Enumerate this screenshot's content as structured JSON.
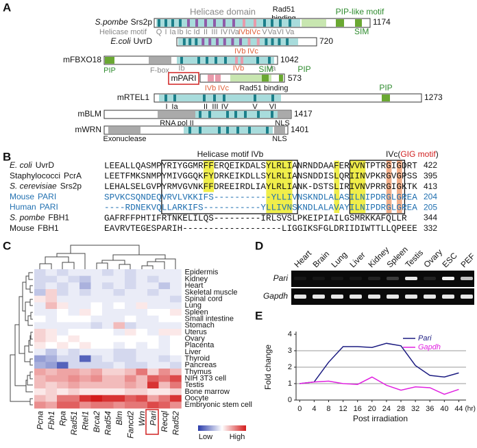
{
  "panel_a": {
    "label": "A",
    "helicase_domain": "Helicase domain",
    "rad51_binding": [
      "Rad51",
      "binding"
    ],
    "pip_like_motif": "PIP-like motif",
    "helicase_motif": "Helicase motif",
    "motifs": [
      "Q",
      "I",
      "Ia",
      "Ib",
      "Ic",
      "Id",
      "II",
      "III",
      "IV",
      "IVa",
      "IVb",
      "IVc",
      "V",
      "Va",
      "VI",
      "Va"
    ],
    "sim": "SIM",
    "proteins": [
      {
        "species": "S.pombe",
        "name": "Srs2p",
        "length": 1174,
        "annotations": []
      },
      {
        "species": "E.coli",
        "name": "UvrD",
        "length": 720,
        "annotations": [
          "IVb",
          "IVc"
        ]
      },
      {
        "name": "mFBXO18",
        "length": 1042,
        "annotations": [
          "PIP",
          "F-box",
          "Ib",
          "IVb",
          "Va"
        ]
      },
      {
        "name": "mPARI",
        "length": 573,
        "annotations": [
          "SIM",
          "PIP",
          "IVb",
          "IVc",
          "Rad51 binding"
        ]
      },
      {
        "name": "mRTEL1",
        "length": 1273,
        "annotations": [
          "PIP",
          "I",
          "Ia",
          "II",
          "III",
          "IV",
          "V",
          "VI"
        ]
      },
      {
        "name": "mBLM",
        "length": 1417,
        "annotations": [
          "RNA pol II",
          "NLS"
        ]
      },
      {
        "name": "mWRN",
        "length": 1401,
        "annotations": [
          "Exonuclease",
          "NLS"
        ]
      }
    ]
  },
  "panel_b": {
    "label": "B",
    "motif_ivb": "Helicase motif IVb",
    "ivc_prefix": "IVc(",
    "gig_motif": "GIG motif",
    "ivc_suffix": ")",
    "rows": [
      {
        "organism": "E. coli",
        "protein": "UvrD",
        "organism_italic": true,
        "sequence": "LEEALLQASMPYRIYGGMRFFERQEIKDALSYLRLIANRNDDAAFERVVNTPTRGIGDRT",
        "position": 422
      },
      {
        "organism": "Staphylococci",
        "protein": "PcrA",
        "organism_italic": false,
        "sequence": "LEETFMKSNMPYMIVGGQKFYDRKEIKDLLSYLRLIANSNDDISLQRIINVPKRGVGPSS",
        "position": 395
      },
      {
        "organism": "S. cerevisiae",
        "protein": "Srs2p",
        "organism_italic": true,
        "sequence": "LEHALSELGVPYRMVGVNKFFDREEIRDLIAYLRLIANK-DSTSLIRIVNVPRRGIGKTK",
        "position": 413
      },
      {
        "organism": "Mouse",
        "protein": "PARI",
        "organism_italic": false,
        "color": "#1f6fb0",
        "sequence": "SPVKCSQNDEQVRVLVKKIFS-----------YLLIVNSKNDLALASILNIPDRGLGREA",
        "position": 204
      },
      {
        "organism": "Human",
        "protein": "PARI",
        "organism_italic": false,
        "color": "#1f6fb0",
        "sequence": "----RDNEKVQLLARKIFS-----------YLLIVNSKNDLALAVAYILNIPDRGLGREA",
        "position": 205
      },
      {
        "organism": "S. pombe",
        "protein": "FBH1",
        "organism_italic": true,
        "sequence": "GAFRFFPHTIFRTNKELILQS---------IRLSVSLPKEIPIAILGSMRKKAFQLLR",
        "position": 344
      },
      {
        "organism": "Mouse",
        "protein": "FBH1",
        "organism_italic": false,
        "sequence": "EAVRVTEGESPARIH-------------------LIGGIKSFGLDRIIDIWTTLLQPEEE",
        "position": 332
      }
    ]
  },
  "panel_c": {
    "label": "C",
    "columns": [
      "Pcna",
      "Fbh1",
      "Rpa",
      "Rad51",
      "Rtel1",
      "Brca2",
      "Rad54",
      "Blm",
      "Fancd2",
      "Wrn",
      "Pari",
      "Recql",
      "Rad52"
    ],
    "rows": [
      "Epidermis",
      "Kidney",
      "Heart",
      "Skeletal muscle",
      "Spinal cord",
      "Lung",
      "Spleen",
      "Small intestine",
      "Stomach",
      "Uterus",
      "Ovary",
      "Placenta",
      "Liver",
      "Thyroid",
      "Pancreas",
      "Thymus",
      "NIH 3T3 cell",
      "Testis",
      "Bone marrow",
      "Oocyte",
      "Embryonic stem cell"
    ],
    "values": [
      [
        -0.2,
        -0.1,
        -0.2,
        -0.1,
        -0.1,
        -0.1,
        -0.2,
        -0.1,
        -0.2,
        -0.1,
        -0.1,
        -0.1,
        -0.1
      ],
      [
        -0.2,
        -0.2,
        -0.1,
        -0.2,
        -0.3,
        -0.1,
        -0.1,
        -0.1,
        -0.2,
        -0.1,
        -0.2,
        -0.1,
        -0.1
      ],
      [
        -0.2,
        -0.1,
        -0.2,
        -0.1,
        -0.4,
        -0.1,
        -0.2,
        -0.1,
        -0.2,
        -0.1,
        -0.1,
        -0.3,
        -0.1
      ],
      [
        -0.3,
        0.2,
        -0.2,
        -0.1,
        -0.2,
        -0.1,
        -0.1,
        -0.2,
        -0.1,
        -0.1,
        -0.2,
        -0.1,
        -0.1
      ],
      [
        0.1,
        0.2,
        -0.1,
        -0.1,
        -0.1,
        -0.1,
        -0.1,
        -0.1,
        -0.1,
        -0.1,
        -0.1,
        -0.1,
        -0.2
      ],
      [
        -0.1,
        0.3,
        0.1,
        -0.1,
        -0.1,
        0,
        -0.1,
        0,
        -0.1,
        0.1,
        -0.1,
        -0.1,
        -0.1
      ],
      [
        -0.1,
        -0.1,
        0,
        -0.1,
        0.1,
        0,
        -0.1,
        -0.1,
        -0.1,
        -0.1,
        0,
        0,
        0.1
      ],
      [
        0,
        -0.1,
        0,
        0,
        0,
        -0.1,
        -0.1,
        -0.1,
        0,
        -0.1,
        -0.1,
        0,
        0
      ],
      [
        -0.1,
        -0.1,
        -0.1,
        -0.1,
        -0.1,
        -0.2,
        -0.1,
        0.3,
        -0.2,
        -0.1,
        -0.1,
        -0.1,
        -0.1
      ],
      [
        0.2,
        0.1,
        -0.1,
        0,
        0,
        0,
        0,
        -0.1,
        0.1,
        0,
        -0.1,
        0.1,
        0.1
      ],
      [
        0.2,
        0.1,
        0,
        0.1,
        0,
        0,
        0,
        0,
        0,
        0,
        0,
        -0.1,
        0
      ],
      [
        0.1,
        0,
        0.1,
        0,
        0.1,
        0,
        0,
        -0.1,
        0,
        -0.1,
        0,
        -0.1,
        0
      ],
      [
        -0.1,
        -0.3,
        -0.1,
        -0.2,
        -0.1,
        -0.1,
        -0.1,
        -0.2,
        -0.2,
        -0.1,
        -0.1,
        -0.1,
        0
      ],
      [
        -0.5,
        -0.4,
        -0.2,
        -0.2,
        -0.8,
        -0.2,
        -0.1,
        -0.2,
        -0.2,
        -0.1,
        -0.1,
        -0.2,
        -0.1
      ],
      [
        -0.4,
        -0.5,
        -0.8,
        -0.2,
        -0.2,
        -0.2,
        -0.2,
        -0.1,
        -0.2,
        -0.2,
        -0.1,
        -0.1,
        -0.2
      ],
      [
        0.4,
        0.3,
        0.4,
        0.4,
        0.3,
        0.4,
        0.2,
        0.2,
        0.3,
        0.6,
        0.2,
        0.5,
        0.3
      ],
      [
        0.3,
        0.4,
        0.4,
        0.5,
        0.4,
        0.5,
        0.3,
        0.3,
        0.5,
        0.3,
        0.7,
        0.6,
        0.8
      ],
      [
        0.3,
        0.2,
        0.3,
        0.4,
        0.3,
        0.3,
        0.3,
        0.3,
        0.4,
        0.3,
        0.9,
        0.3,
        0.6
      ],
      [
        0.1,
        0.2,
        0.1,
        0.2,
        0.1,
        0.1,
        0.1,
        0.1,
        0.2,
        0.2,
        0.1,
        0.1,
        0.2
      ],
      [
        0.3,
        0.2,
        0.6,
        0.6,
        0.9,
        1.0,
        0.9,
        0.9,
        0.7,
        0.8,
        0.4,
        0.6,
        0.9
      ],
      [
        0.5,
        0.4,
        0.7,
        0.7,
        0.5,
        0.6,
        0.6,
        0.5,
        0.6,
        0.6,
        0.8,
        0.7,
        0.5
      ]
    ],
    "low_color": "#2a3caa",
    "high_color": "#d41c1c",
    "legend_low": "Low",
    "legend_high": "High"
  },
  "panel_d": {
    "label": "D",
    "lanes": [
      "Heart",
      "Brain",
      "Lung",
      "Liver",
      "Kidney",
      "Spleen",
      "Testis",
      "Ovary",
      "ESC",
      "PEF"
    ],
    "genes": [
      "Pari",
      "Gapdh"
    ]
  },
  "panel_e": {
    "label": "E",
    "type": "line",
    "ylabel": "Fold change",
    "xlabel": "Post irradiation",
    "x_unit": "(hr)",
    "x": [
      0,
      4,
      8,
      12,
      16,
      20,
      24,
      28,
      32,
      36,
      40,
      44
    ],
    "series": [
      {
        "name": "Pari",
        "color": "#1a1a80",
        "values": [
          1.0,
          1.1,
          2.3,
          3.25,
          3.25,
          3.2,
          3.45,
          3.3,
          2.1,
          1.5,
          1.4,
          1.65
        ]
      },
      {
        "name": "Gapdh",
        "color": "#e020e0",
        "values": [
          1.0,
          1.1,
          1.15,
          1.0,
          0.95,
          1.4,
          0.9,
          0.6,
          0.8,
          0.75,
          0.35,
          0.65
        ]
      }
    ],
    "xlim": [
      -1,
      46
    ],
    "ylim": [
      0,
      4
    ],
    "xticks": [
      0,
      4,
      8,
      12,
      16,
      20,
      24,
      28,
      32,
      36,
      40,
      44
    ],
    "yticks": [
      0,
      1,
      2,
      3,
      4
    ],
    "grid": true
  }
}
